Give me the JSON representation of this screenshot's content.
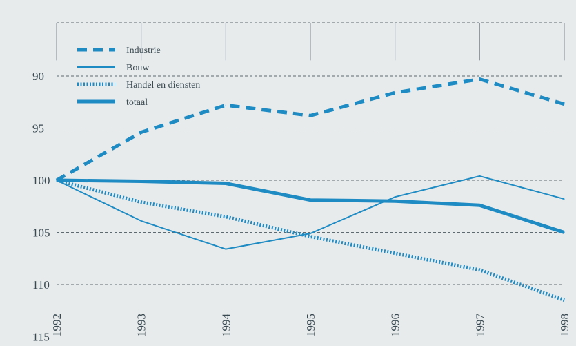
{
  "chart_data": {
    "type": "line",
    "x": [
      "1992",
      "1993",
      "1994",
      "1995",
      "1996",
      "1997",
      "1998"
    ],
    "y_ticks": [
      90,
      95,
      100,
      105,
      110,
      115
    ],
    "ylim": [
      88.5,
      115
    ],
    "grid": true,
    "legend_position": "top-left",
    "series": [
      {
        "name": "Industrie",
        "style": "dashed-thick",
        "color": "#1e8bc3",
        "values": [
          100,
          95.4,
          92.8,
          93.8,
          91.6,
          90.3,
          92.7
        ]
      },
      {
        "name": "Bouw",
        "style": "thin",
        "color": "#1e8bc3",
        "values": [
          100,
          103.9,
          106.6,
          105.1,
          101.6,
          99.6,
          101.8
        ]
      },
      {
        "name": "Handel en diensten",
        "style": "dotted",
        "color": "#1e8bc3",
        "values": [
          100,
          102.1,
          103.5,
          105.4,
          107,
          108.6,
          111.5
        ]
      },
      {
        "name": "totaal",
        "style": "thick",
        "color": "#1e8bc3",
        "values": [
          100,
          100.1,
          100.3,
          101.9,
          102,
          102.4,
          105
        ]
      }
    ]
  }
}
